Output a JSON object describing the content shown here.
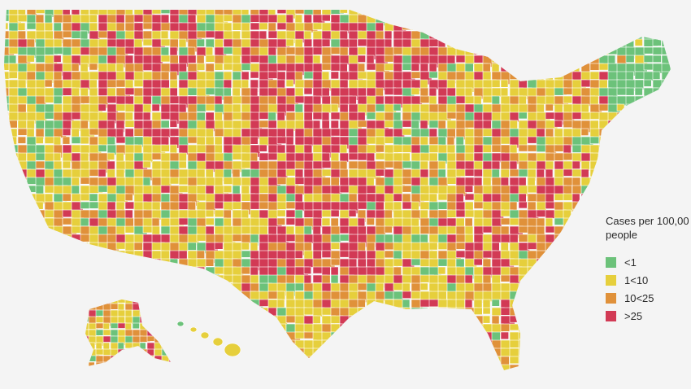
{
  "legend": {
    "title": "Cases per 100,00\npeople",
    "items": [
      {
        "label": "<1",
        "color": "#6cc27a"
      },
      {
        "label": "1<10",
        "color": "#e6cf3c"
      },
      {
        "label": "10<25",
        "color": "#e0913a"
      },
      {
        "label": ">25",
        "color": "#d23a55"
      }
    ]
  },
  "colors": {
    "background": "#f4f4f4",
    "border": "#ffffff"
  }
}
